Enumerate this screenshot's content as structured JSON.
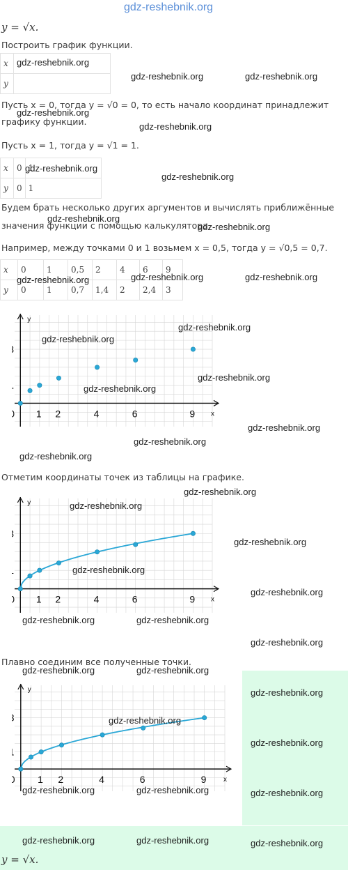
{
  "header_watermark": "gdz-reshebnik.org",
  "formula_top": "y = √x.",
  "task": "Построить график функции.",
  "table1": {
    "rows": [
      [
        "x",
        ""
      ],
      [
        "y",
        ""
      ]
    ]
  },
  "step1": "Пусть x = 0, тогда y = √0 = 0, то есть начало координат принадлежит графику функции.",
  "step1_line1": "Пусть x = 0, тогда y = √0 = 0, то есть начало координат принадлежит",
  "step1_line2": "графику функции.",
  "step2": "Пусть x = 1, тогда y = √1 = 1.",
  "table2": {
    "rows": [
      [
        "x",
        "0",
        "1"
      ],
      [
        "y",
        "0",
        "1"
      ]
    ]
  },
  "step3_line1": "Будем брать несколько других аргументов и вычислять приближённые",
  "step3_line2": "значения функции с помощью калькулятора.",
  "step4": "Например, между точками 0 и 1 возьмем x = 0,5, тогда y = √0,5 = 0,7.",
  "table3": {
    "rows": [
      [
        "x",
        "0",
        "1",
        "0,5",
        "2",
        "4",
        "6",
        "9"
      ],
      [
        "y",
        "0",
        "1",
        "0,7",
        "1,4",
        "2",
        "2,4",
        "3"
      ]
    ]
  },
  "step5": "Отметим координаты точек из таблицы на графике.",
  "step6": "Плавно соединим все полученные точки.",
  "formula_bottom": "y = √x.",
  "watermark": "gdz-reshebnik.org",
  "chart_data": [
    {
      "type": "scatter",
      "xlabel": "x",
      "ylabel": "y",
      "x_ticks": [
        "0",
        "1",
        "2",
        "4",
        "6",
        "9"
      ],
      "y_ticks": [
        "1",
        "3"
      ],
      "xlim": [
        -0.3,
        10
      ],
      "ylim": [
        -1.3,
        4.9
      ],
      "points": [
        [
          0,
          0
        ],
        [
          0.5,
          0.7
        ],
        [
          1,
          1
        ],
        [
          2,
          1.4
        ],
        [
          4,
          2
        ],
        [
          6,
          2.4
        ],
        [
          9,
          3
        ]
      ]
    },
    {
      "type": "line",
      "xlabel": "x",
      "ylabel": "y",
      "x_ticks": [
        "0",
        "1",
        "2",
        "4",
        "6",
        "9"
      ],
      "y_ticks": [
        "1",
        "3"
      ],
      "xlim": [
        -0.3,
        10
      ],
      "ylim": [
        -1.3,
        4.9
      ],
      "points": [
        [
          0,
          0
        ],
        [
          0.5,
          0.7
        ],
        [
          1,
          1
        ],
        [
          2,
          1.4
        ],
        [
          4,
          2
        ],
        [
          6,
          2.4
        ],
        [
          9,
          3
        ]
      ]
    },
    {
      "type": "line",
      "xlabel": "x",
      "ylabel": "y",
      "x_ticks": [
        "0",
        "1",
        "2",
        "4",
        "6",
        "9"
      ],
      "y_ticks": [
        "1",
        "3"
      ],
      "xlim": [
        -0.3,
        10
      ],
      "ylim": [
        -1.3,
        4.9
      ],
      "points": [
        [
          0,
          0
        ],
        [
          0.5,
          0.7
        ],
        [
          1,
          1
        ],
        [
          2,
          1.4
        ],
        [
          4,
          2
        ],
        [
          6,
          2.4
        ],
        [
          9,
          3
        ]
      ]
    }
  ]
}
